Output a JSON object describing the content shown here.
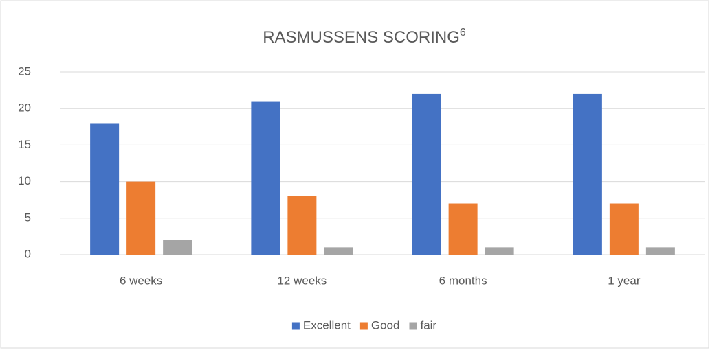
{
  "chart_data": {
    "type": "bar",
    "title": "RASMUSSENS SCORING",
    "title_superscript": "6",
    "categories": [
      "6 weeks",
      "12 weeks",
      "6 months",
      "1 year"
    ],
    "series": [
      {
        "name": "Excellent",
        "color": "#4472c4",
        "values": [
          18,
          21,
          22,
          22
        ]
      },
      {
        "name": "Good",
        "color": "#ed7d31",
        "values": [
          10,
          8,
          7,
          7
        ]
      },
      {
        "name": "fair",
        "color": "#a5a5a5",
        "values": [
          2,
          1,
          1,
          1
        ]
      }
    ],
    "ylim": [
      0,
      25
    ],
    "yticks": [
      0,
      5,
      10,
      15,
      20,
      25
    ],
    "grid": true,
    "legend": "bottom"
  }
}
